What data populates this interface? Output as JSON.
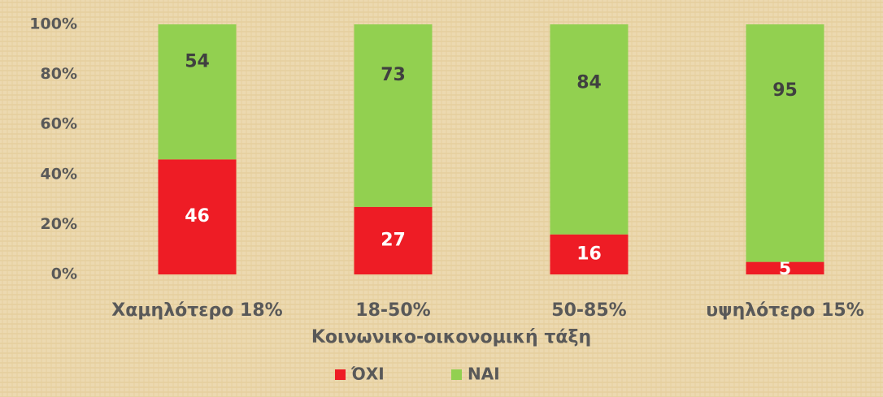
{
  "chart_data": {
    "type": "stacked_bar",
    "categories": [
      "Χαμηλότερο 18%",
      "18-50%",
      "50-85%",
      "υψηλότερο 15%"
    ],
    "series": [
      {
        "name": "ΌΧΙ",
        "color": "#ee1c25",
        "values": [
          46,
          27,
          16,
          5
        ]
      },
      {
        "name": "ΝΑΙ",
        "color": "#92d050",
        "values": [
          54,
          73,
          84,
          95
        ]
      }
    ],
    "x_label": "Κοινωνικο-οικονομική τάξη",
    "ylim": [
      0,
      100
    ],
    "yticks": [
      {
        "value": 0,
        "label": "0%"
      },
      {
        "value": 20,
        "label": "20%"
      },
      {
        "value": 40,
        "label": "40%"
      },
      {
        "value": 60,
        "label": "60%"
      },
      {
        "value": 80,
        "label": "80%"
      },
      {
        "value": 100,
        "label": "100%"
      }
    ],
    "legend": "bottom"
  }
}
